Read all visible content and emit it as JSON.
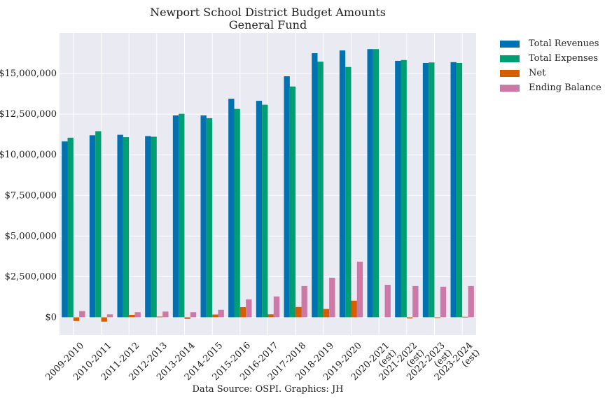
{
  "chart_data": {
    "type": "bar",
    "title": "Newport School District Budget Amounts",
    "subtitle": "General Fund",
    "categories": [
      "2009-2010",
      "2010-2011",
      "2011-2012",
      "2012-2013",
      "2013-2014",
      "2014-2015",
      "2015-2016",
      "2016-2017",
      "2017-2018",
      "2018-2019",
      "2019-2020",
      "2020-2021\n(est)",
      "2021-2022\n(est)",
      "2022-2023\n(est)",
      "2023-2024\n(est)"
    ],
    "series": [
      {
        "name": "Total Revenues",
        "color": "#0072b2",
        "values": [
          10820000,
          11200000,
          11230000,
          11150000,
          12420000,
          12420000,
          13450000,
          13320000,
          14830000,
          16250000,
          16420000,
          16500000,
          15780000,
          15650000,
          15700000
        ]
      },
      {
        "name": "Total Expenses",
        "color": "#009e73",
        "values": [
          11050000,
          11450000,
          11080000,
          11110000,
          12520000,
          12250000,
          12820000,
          13080000,
          14200000,
          15730000,
          15400000,
          16500000,
          15830000,
          15680000,
          15650000
        ]
      },
      {
        "name": "Net",
        "color": "#d55e00",
        "values": [
          -230000,
          -270000,
          150000,
          40000,
          -100000,
          170000,
          620000,
          180000,
          630000,
          510000,
          1020000,
          0,
          -70000,
          -40000,
          30000
        ]
      },
      {
        "name": "Ending Balance",
        "color": "#cc79a7",
        "values": [
          380000,
          180000,
          310000,
          350000,
          310000,
          460000,
          1100000,
          1280000,
          1920000,
          2430000,
          3420000,
          2000000,
          1920000,
          1880000,
          1920000
        ]
      }
    ],
    "y_ticks": [
      "$0",
      "$2,500,000",
      "$5,000,000",
      "$7,500,000",
      "$10,000,000",
      "$12,500,000",
      "$15,000,000"
    ],
    "y_tick_values": [
      0,
      2500000,
      5000000,
      7500000,
      10000000,
      12500000,
      15000000
    ],
    "ylim": [
      -1100000,
      17500000
    ],
    "grid": true,
    "legend": "outside-top-right",
    "xtick_rotation": 45,
    "background": "#eaeaf2",
    "source": "Data Source: OSPI. Graphics: JH"
  }
}
